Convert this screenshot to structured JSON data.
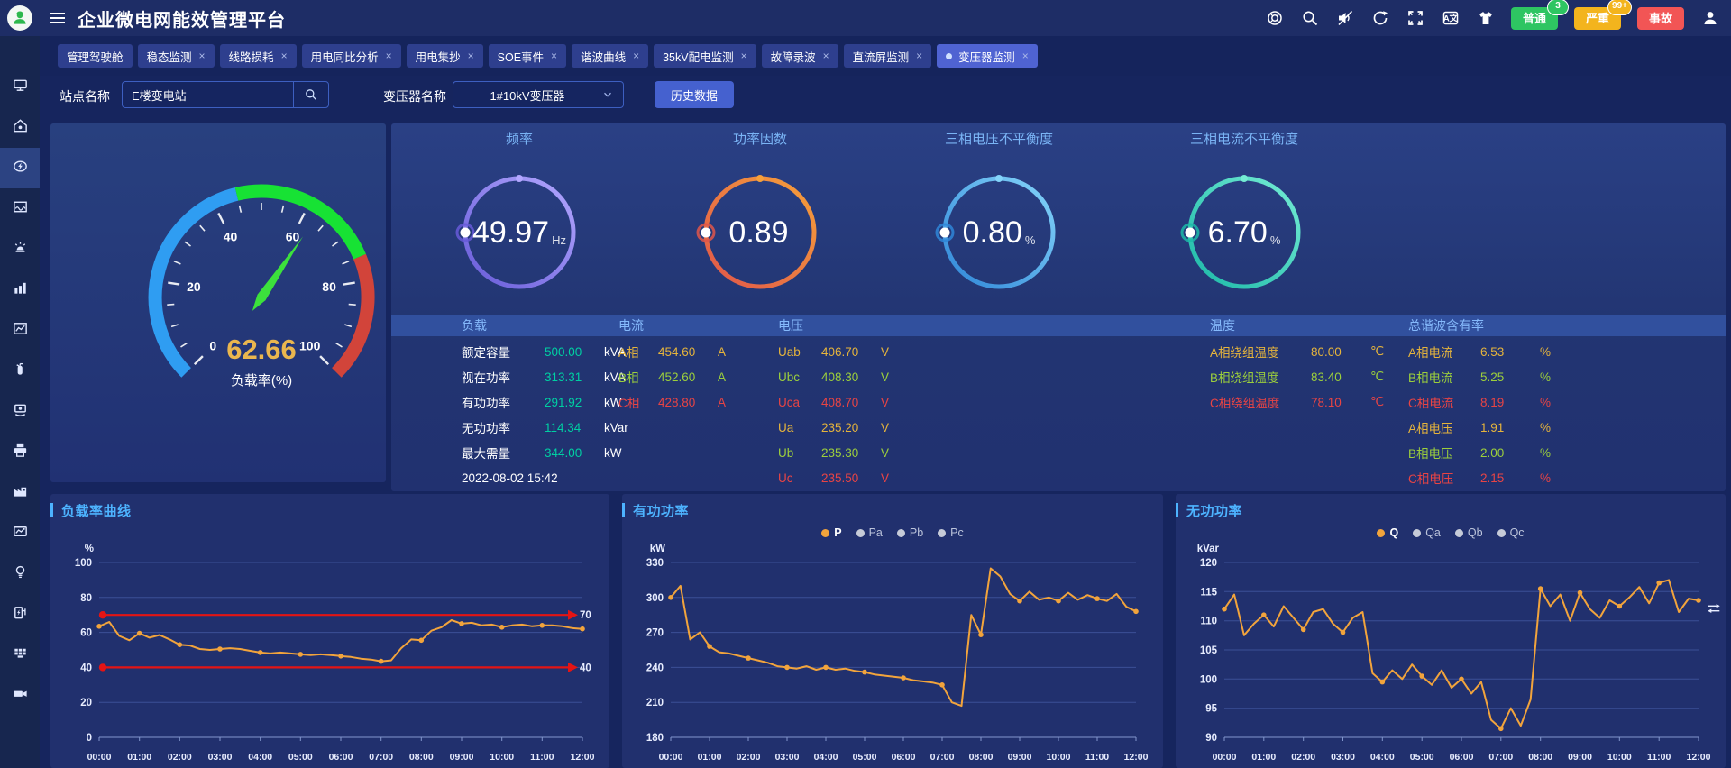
{
  "header": {
    "title": "企业微电网能效管理平台",
    "icons": [
      "help-icon",
      "search-icon",
      "mute-icon",
      "refresh-icon",
      "fullscreen-icon",
      "translate-icon",
      "theme-icon"
    ],
    "alarm_buttons": [
      {
        "label": "普通",
        "count": "3",
        "color": "#2ec562"
      },
      {
        "label": "严重",
        "count": "99+",
        "color": "#f3b41d"
      },
      {
        "label": "事故",
        "count": "",
        "color": "#f25555"
      }
    ]
  },
  "tabs": [
    {
      "label": "管理驾驶舱",
      "closable": false,
      "active": false
    },
    {
      "label": "稳态监测",
      "closable": true,
      "active": false
    },
    {
      "label": "线路损耗",
      "closable": true,
      "active": false
    },
    {
      "label": "用电同比分析",
      "closable": true,
      "active": false
    },
    {
      "label": "用电集抄",
      "closable": true,
      "active": false
    },
    {
      "label": "SOE事件",
      "closable": true,
      "active": false
    },
    {
      "label": "谐波曲线",
      "closable": true,
      "active": false
    },
    {
      "label": "35kV配电监测",
      "closable": true,
      "active": false
    },
    {
      "label": "故障录波",
      "closable": true,
      "active": false
    },
    {
      "label": "直流屏监测",
      "closable": true,
      "active": false
    },
    {
      "label": "变压器监测",
      "closable": true,
      "active": true
    }
  ],
  "filters": {
    "site_label": "站点名称",
    "site_value": "E楼变电站",
    "transformer_label": "变压器名称",
    "transformer_value": "1#10kV变压器",
    "history_button": "历史数据"
  },
  "sidebar": {
    "items": [
      "screen-icon",
      "home-icon",
      "energy-icon",
      "wave-chart-icon",
      "alarm-icon",
      "bar-chart-icon",
      "line-chart-icon",
      "extinguisher-icon",
      "report-icon",
      "printer-icon",
      "factory-icon",
      "trend-icon",
      "bulb-icon",
      "charger-icon",
      "grid-icon",
      "camera-icon"
    ],
    "active_index": 2
  },
  "gauge": {
    "value": 62.66,
    "label": "负载率(%)",
    "min": 0,
    "max": 100,
    "tick_labels": [
      0,
      20,
      40,
      60,
      80,
      100
    ],
    "zones": [
      {
        "to": 45,
        "color": "#2f9df2"
      },
      {
        "to": 75,
        "color": "#17e234"
      },
      {
        "to": 100,
        "color": "#d2443a"
      }
    ],
    "needle_color": "#3ce13c",
    "value_color": "#eab64e"
  },
  "rings": [
    {
      "title": "频率",
      "value": "49.97",
      "unit": "Hz",
      "color_start": "#675bd8",
      "color_end": "#b3a7ff"
    },
    {
      "title": "功率因数",
      "value": "0.89",
      "unit": "",
      "color_start": "#e0564a",
      "color_end": "#f6a03a"
    },
    {
      "title": "三相电压不平衡度",
      "value": "0.80",
      "unit": "%",
      "color_start": "#2f86d8",
      "color_end": "#84d4fa"
    },
    {
      "title": "三相电流不平衡度",
      "value": "6.70",
      "unit": "%",
      "color_start": "#1cb8a8",
      "color_end": "#74ecd4"
    }
  ],
  "table": {
    "headers": [
      "负载",
      "电流",
      "电压",
      "温度",
      "总谐波含有率"
    ],
    "phase_colors": {
      "a": "#e6b43c",
      "b": "#9ccf3c",
      "c": "#e84444",
      "load_value": "#00cfa2"
    },
    "load_rows": [
      {
        "label": "额定容量",
        "value": "500.00",
        "unit": "kVA"
      },
      {
        "label": "视在功率",
        "value": "313.31",
        "unit": "kVA"
      },
      {
        "label": "有功功率",
        "value": "291.92",
        "unit": "kW"
      },
      {
        "label": "无功功率",
        "value": "114.34",
        "unit": "kVar"
      },
      {
        "label": "最大需量",
        "value": "344.00",
        "unit": "kW"
      },
      {
        "label": "2022-08-02 15:42",
        "value": "",
        "unit": ""
      }
    ],
    "current_rows": [
      {
        "label": "A相",
        "value": "454.60",
        "unit": "A",
        "phase": "a"
      },
      {
        "label": "B相",
        "value": "452.60",
        "unit": "A",
        "phase": "b"
      },
      {
        "label": "C相",
        "value": "428.80",
        "unit": "A",
        "phase": "c"
      }
    ],
    "voltage_rows": [
      {
        "label": "Uab",
        "value": "406.70",
        "unit": "V",
        "phase": "a"
      },
      {
        "label": "Ubc",
        "value": "408.30",
        "unit": "V",
        "phase": "b"
      },
      {
        "label": "Uca",
        "value": "408.70",
        "unit": "V",
        "phase": "c"
      },
      {
        "label": "Ua",
        "value": "235.20",
        "unit": "V",
        "phase": "a"
      },
      {
        "label": "Ub",
        "value": "235.30",
        "unit": "V",
        "phase": "b"
      },
      {
        "label": "Uc",
        "value": "235.50",
        "unit": "V",
        "phase": "c"
      }
    ],
    "temperature_rows": [
      {
        "label": "A相绕组温度",
        "value": "80.00",
        "unit": "℃",
        "phase": "a"
      },
      {
        "label": "B相绕组温度",
        "value": "83.40",
        "unit": "℃",
        "phase": "b"
      },
      {
        "label": "C相绕组温度",
        "value": "78.10",
        "unit": "℃",
        "phase": "c"
      }
    ],
    "thd_rows": [
      {
        "label": "A相电流",
        "value": "6.53",
        "unit": "%",
        "phase": "a"
      },
      {
        "label": "B相电流",
        "value": "5.25",
        "unit": "%",
        "phase": "b"
      },
      {
        "label": "C相电流",
        "value": "8.19",
        "unit": "%",
        "phase": "c"
      },
      {
        "label": "A相电压",
        "value": "1.91",
        "unit": "%",
        "phase": "a"
      },
      {
        "label": "B相电压",
        "value": "2.00",
        "unit": "%",
        "phase": "b"
      },
      {
        "label": "C相电压",
        "value": "2.15",
        "unit": "%",
        "phase": "c"
      }
    ]
  },
  "chart_data": [
    {
      "type": "line",
      "title": "负载率曲线",
      "unit": "%",
      "ylim": [
        0,
        100
      ],
      "yticks": [
        0,
        20,
        40,
        60,
        80,
        100
      ],
      "x_labels": [
        "00:00",
        "01:00",
        "02:00",
        "03:00",
        "04:00",
        "05:00",
        "06:00",
        "07:00",
        "08:00",
        "09:00",
        "10:00",
        "11:00",
        "12:00"
      ],
      "x_interval_minutes": 15,
      "grid": true,
      "legend": [],
      "thresholds": [
        {
          "value": 70,
          "label": "70",
          "color": "#e41414"
        },
        {
          "value": 40,
          "label": "40",
          "color": "#e41414"
        }
      ],
      "series": [
        {
          "name": "负载率",
          "color": "#f2a43c",
          "values": [
            63.5,
            66,
            58,
            55.5,
            59.5,
            57,
            58.5,
            56,
            53,
            52.5,
            50.5,
            50,
            50.5,
            51,
            50.5,
            49.5,
            48.5,
            48,
            48.5,
            48,
            47.5,
            47,
            47.5,
            47,
            46.5,
            46,
            45,
            44.5,
            43.5,
            44,
            51,
            56,
            55.5,
            61,
            63,
            67,
            65,
            65.5,
            64,
            64.5,
            63,
            64,
            64.5,
            63.5,
            64,
            64,
            63.5,
            62.5,
            62
          ]
        }
      ]
    },
    {
      "type": "line",
      "title": "有功功率",
      "unit": "kW",
      "ylim": [
        180,
        330
      ],
      "yticks": [
        180,
        210,
        240,
        270,
        300,
        330
      ],
      "x_labels": [
        "00:00",
        "01:00",
        "02:00",
        "03:00",
        "04:00",
        "05:00",
        "06:00",
        "07:00",
        "08:00",
        "09:00",
        "10:00",
        "11:00",
        "12:00"
      ],
      "x_interval_minutes": 15,
      "grid": true,
      "legend": [
        {
          "label": "P",
          "active": true,
          "color": "#f2a43c"
        },
        {
          "label": "Pa",
          "active": false,
          "color": "#c6cbd8"
        },
        {
          "label": "Pb",
          "active": false,
          "color": "#c6cbd8"
        },
        {
          "label": "Pc",
          "active": false,
          "color": "#c6cbd8"
        }
      ],
      "thresholds": [],
      "series": [
        {
          "name": "P",
          "color": "#f2a43c",
          "values": [
            300,
            310,
            264,
            270,
            258,
            253,
            252,
            250,
            248,
            246,
            244,
            241,
            240,
            239,
            241,
            238,
            240,
            238,
            239,
            237,
            236,
            234,
            233,
            232,
            231,
            229,
            228,
            227,
            225,
            210,
            207,
            285,
            268,
            325,
            318,
            303,
            297,
            305,
            298,
            300,
            297,
            304,
            298,
            302,
            299,
            297,
            303,
            292,
            288
          ]
        }
      ]
    },
    {
      "type": "line",
      "title": "无功功率",
      "unit": "kVar",
      "ylim": [
        90,
        120
      ],
      "yticks": [
        90,
        95,
        100,
        105,
        110,
        115,
        120
      ],
      "x_labels": [
        "00:00",
        "01:00",
        "02:00",
        "03:00",
        "04:00",
        "05:00",
        "06:00",
        "07:00",
        "08:00",
        "09:00",
        "10:00",
        "11:00",
        "12:00"
      ],
      "x_interval_minutes": 15,
      "grid": true,
      "toolbox": true,
      "legend": [
        {
          "label": "Q",
          "active": true,
          "color": "#f2a43c"
        },
        {
          "label": "Qa",
          "active": false,
          "color": "#c6cbd8"
        },
        {
          "label": "Qb",
          "active": false,
          "color": "#c6cbd8"
        },
        {
          "label": "Qc",
          "active": false,
          "color": "#c6cbd8"
        }
      ],
      "thresholds": [],
      "series": [
        {
          "name": "Q",
          "color": "#f2a43c",
          "values": [
            112,
            114.5,
            107.5,
            109.5,
            111,
            109,
            112.5,
            110.5,
            108.5,
            111.5,
            112,
            109.5,
            108,
            110.5,
            111.5,
            101,
            99.5,
            101.5,
            100,
            102.5,
            100.5,
            99,
            101.5,
            98.5,
            100,
            97.5,
            99.5,
            93,
            91.5,
            95,
            92,
            96.5,
            115.5,
            112.5,
            114.5,
            110,
            114.8,
            112,
            110.5,
            113.5,
            112.5,
            114,
            115.8,
            113,
            116.5,
            117,
            111.5,
            113.8,
            113.5
          ]
        }
      ]
    }
  ]
}
